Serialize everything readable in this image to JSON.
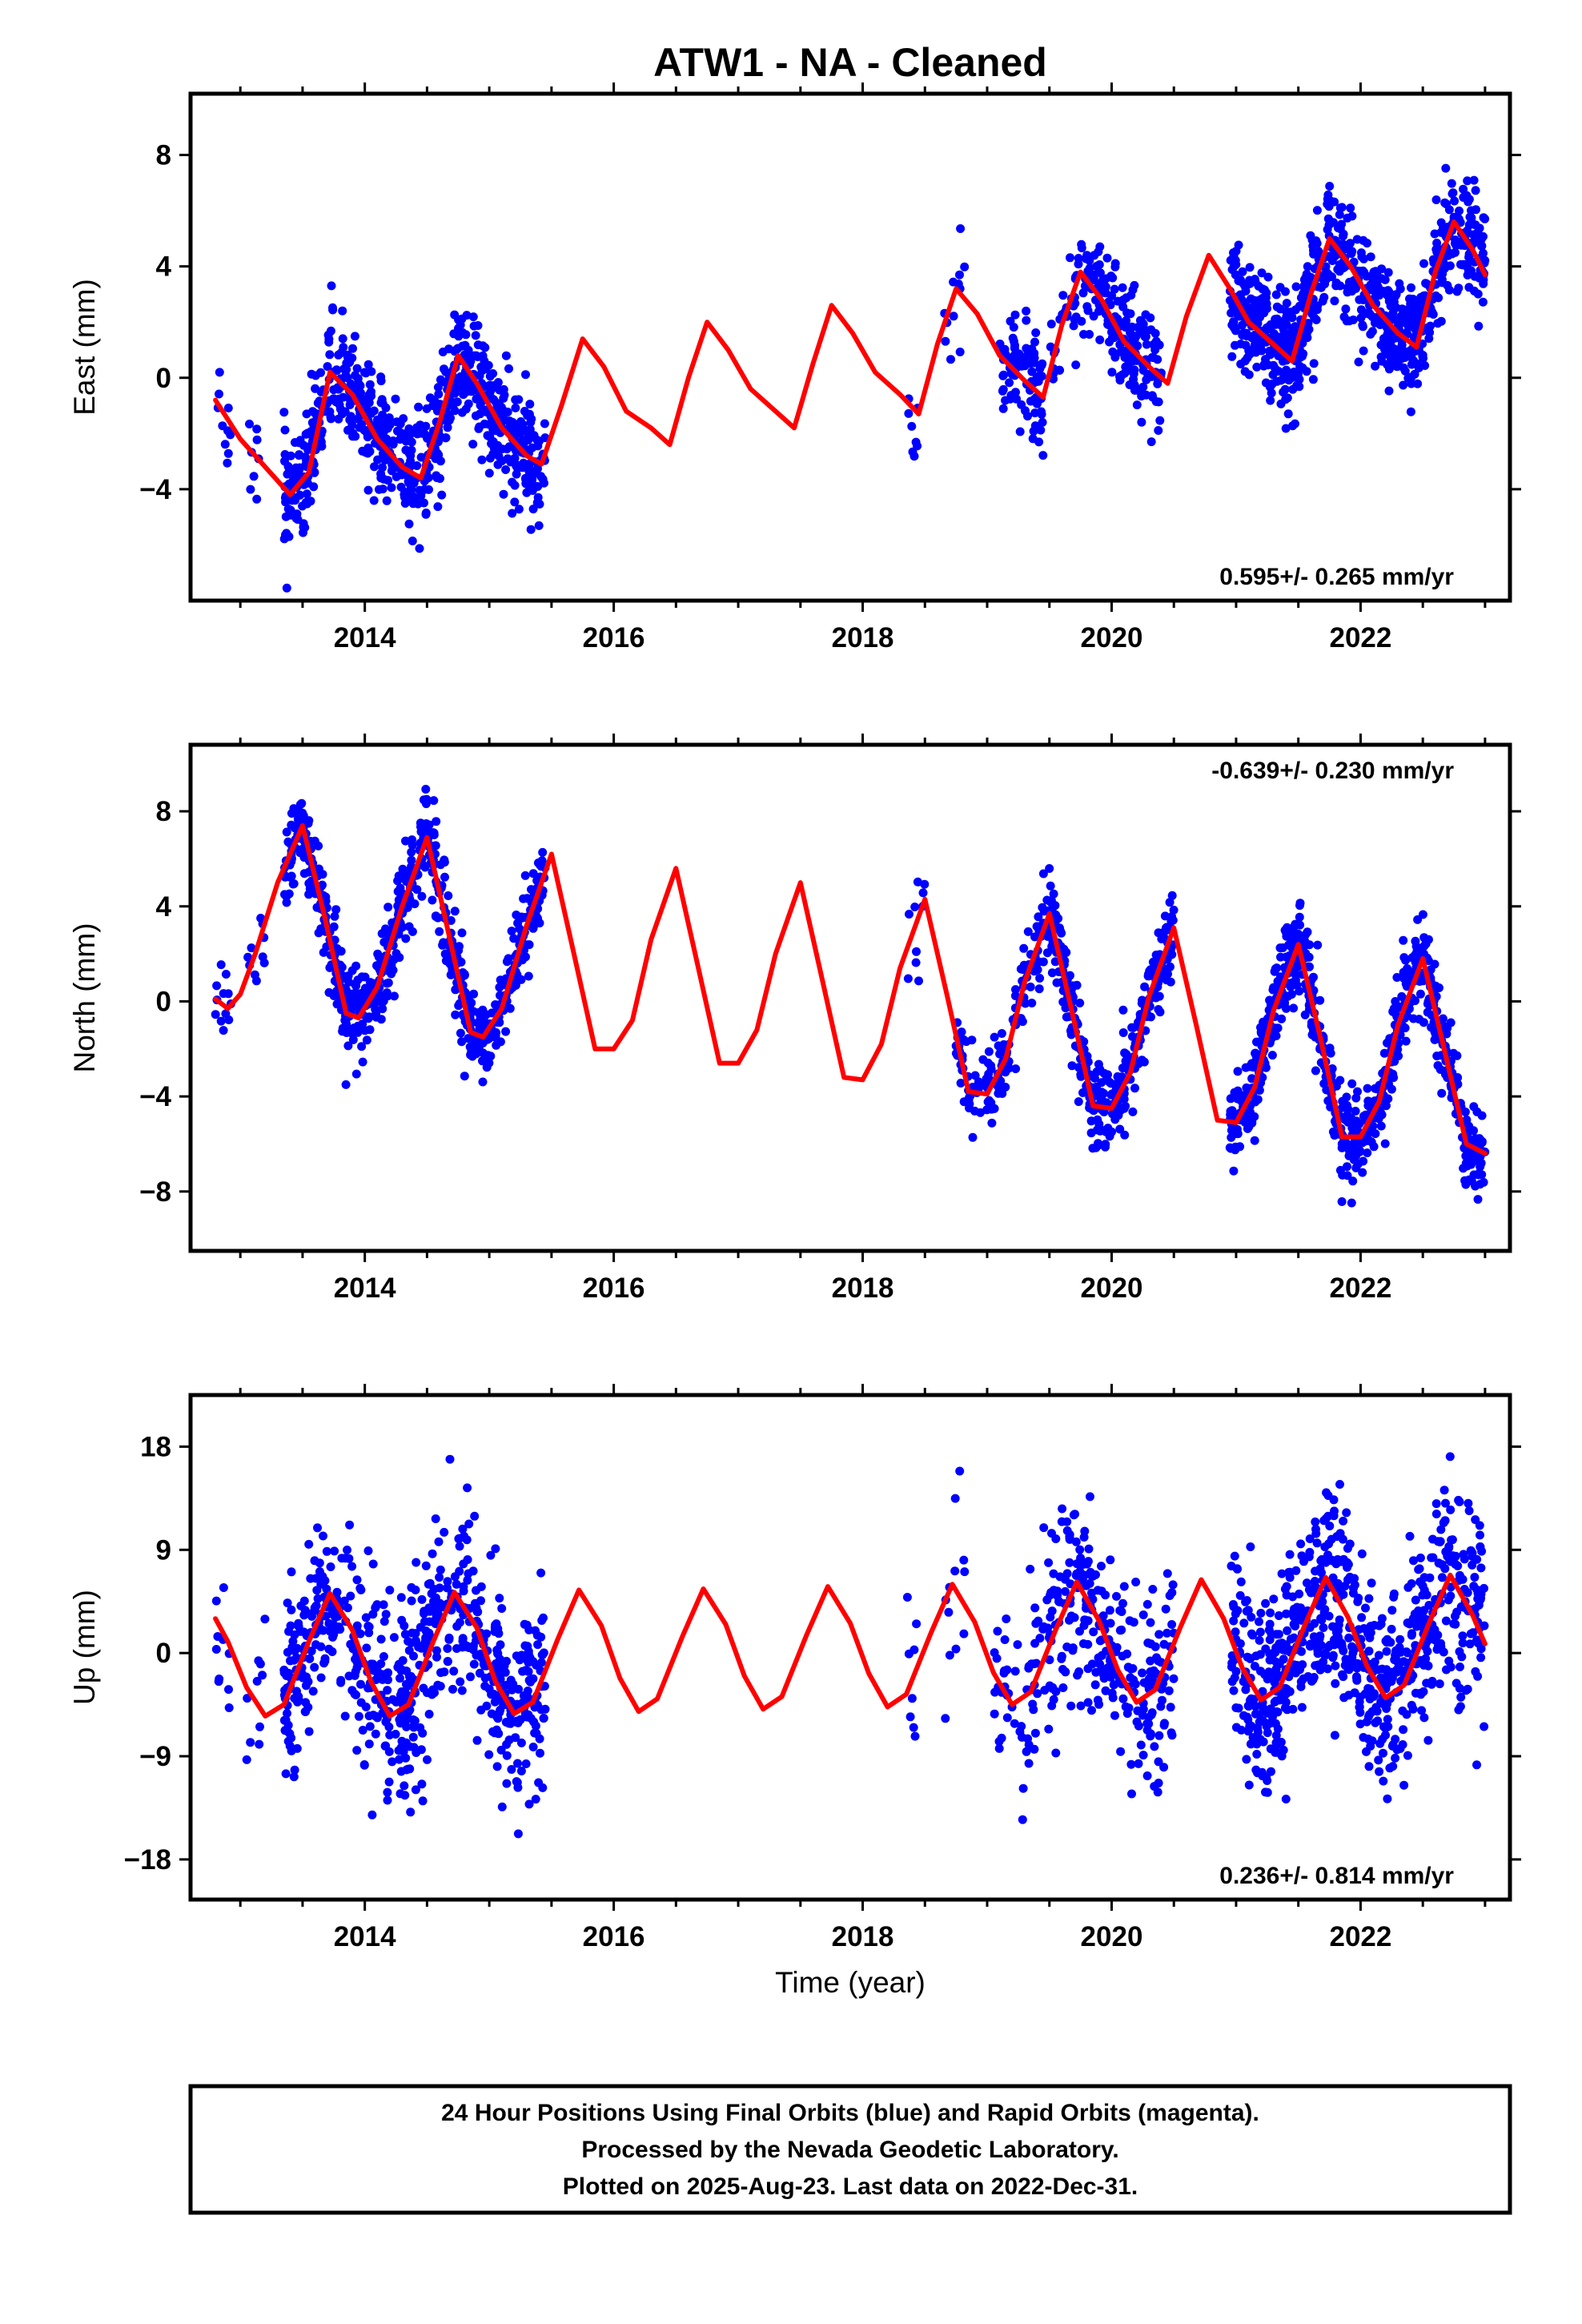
{
  "title": "ATW1  - NA - Cleaned",
  "colors": {
    "data": "#0000ff",
    "model": "#ff0000",
    "axis": "#000000"
  },
  "xlabel": "Time (year)",
  "caption": [
    "24 Hour Positions Using Final Orbits (blue) and Rapid Orbits (magenta).",
    "Processed by the Nevada Geodetic Laboratory.",
    "Plotted on 2025-Aug-23. Last data on 2022-Dec-31."
  ],
  "chart_data": [
    {
      "type": "scatter",
      "id": "east",
      "ylabel": "East (mm)",
      "rate_text": "0.595+/- 0.265 mm/yr",
      "rate_position": "bottom-right",
      "xlim": [
        2012.6,
        2023.2
      ],
      "ylim": [
        -8,
        10.2
      ],
      "xticks": [
        2014,
        2016,
        2018,
        2020,
        2022
      ],
      "yticks": [
        -4,
        0,
        4,
        8
      ],
      "data_segments": [
        {
          "start": 2012.8,
          "end": 2012.92,
          "n": 10
        },
        {
          "start": 2013.05,
          "end": 2013.15,
          "n": 8
        },
        {
          "start": 2013.35,
          "end": 2015.45,
          "n": 720
        },
        {
          "start": 2018.35,
          "end": 2018.45,
          "n": 8
        },
        {
          "start": 2018.65,
          "end": 2018.82,
          "n": 12
        },
        {
          "start": 2019.1,
          "end": 2019.45,
          "n": 90
        },
        {
          "start": 2019.5,
          "end": 2019.8,
          "n": 40
        },
        {
          "start": 2019.8,
          "end": 2020.4,
          "n": 180
        },
        {
          "start": 2020.95,
          "end": 2021.6,
          "n": 300
        },
        {
          "start": 2021.6,
          "end": 2022.2,
          "n": 200
        },
        {
          "start": 2022.2,
          "end": 2023.0,
          "n": 320
        }
      ],
      "annual_amplitude": 2.6,
      "annual_phase": 0.25,
      "scatter_sd": 1.0,
      "model_points": [
        [
          2012.8,
          -0.8
        ],
        [
          2013.0,
          -2.2
        ],
        [
          2013.2,
          -3.2
        ],
        [
          2013.4,
          -4.2
        ],
        [
          2013.55,
          -3.4
        ],
        [
          2013.72,
          0.2
        ],
        [
          2013.9,
          -0.6
        ],
        [
          2014.1,
          -2.2
        ],
        [
          2014.3,
          -3.2
        ],
        [
          2014.45,
          -3.6
        ],
        [
          2014.6,
          -1.6
        ],
        [
          2014.75,
          0.8
        ],
        [
          2014.9,
          -0.2
        ],
        [
          2015.1,
          -1.8
        ],
        [
          2015.3,
          -2.8
        ],
        [
          2015.42,
          -3.1
        ],
        [
          2015.58,
          -1.0
        ],
        [
          2015.75,
          1.4
        ],
        [
          2015.92,
          0.4
        ],
        [
          2016.1,
          -1.2
        ],
        [
          2016.3,
          -1.8
        ],
        [
          2016.45,
          -2.4
        ],
        [
          2016.6,
          0.0
        ],
        [
          2016.75,
          2.0
        ],
        [
          2016.92,
          1.0
        ],
        [
          2017.1,
          -0.4
        ],
        [
          2017.3,
          -1.2
        ],
        [
          2017.45,
          -1.8
        ],
        [
          2017.6,
          0.5
        ],
        [
          2017.75,
          2.6
        ],
        [
          2017.92,
          1.6
        ],
        [
          2018.1,
          0.2
        ],
        [
          2018.3,
          -0.6
        ],
        [
          2018.45,
          -1.3
        ],
        [
          2018.6,
          1.2
        ],
        [
          2018.75,
          3.2
        ],
        [
          2018.92,
          2.3
        ],
        [
          2019.1,
          0.8
        ],
        [
          2019.3,
          -0.1
        ],
        [
          2019.45,
          -0.7
        ],
        [
          2019.6,
          1.9
        ],
        [
          2019.75,
          3.8
        ],
        [
          2019.92,
          2.8
        ],
        [
          2020.1,
          1.3
        ],
        [
          2020.3,
          0.4
        ],
        [
          2020.45,
          -0.2
        ],
        [
          2020.6,
          2.2
        ],
        [
          2020.78,
          4.4
        ],
        [
          2020.95,
          3.2
        ],
        [
          2021.1,
          2.0
        ],
        [
          2021.3,
          1.2
        ],
        [
          2021.45,
          0.6
        ],
        [
          2021.6,
          3.0
        ],
        [
          2021.75,
          5.0
        ],
        [
          2021.92,
          4.0
        ],
        [
          2022.1,
          2.6
        ],
        [
          2022.3,
          1.6
        ],
        [
          2022.45,
          1.1
        ],
        [
          2022.6,
          3.8
        ],
        [
          2022.75,
          5.6
        ],
        [
          2022.9,
          4.6
        ],
        [
          2023.0,
          3.7
        ]
      ]
    },
    {
      "type": "scatter",
      "id": "north",
      "ylabel": "North (mm)",
      "rate_text": "-0.639+/- 0.230 mm/yr",
      "rate_position": "top-right",
      "xlim": [
        2012.6,
        2023.2
      ],
      "ylim": [
        -10.5,
        10.8
      ],
      "xticks": [
        2014,
        2016,
        2018,
        2020,
        2022
      ],
      "yticks": [
        -8,
        -4,
        0,
        4,
        8
      ],
      "data_segments": [
        {
          "start": 2012.8,
          "end": 2012.95,
          "n": 12
        },
        {
          "start": 2013.05,
          "end": 2013.2,
          "n": 10
        },
        {
          "start": 2013.35,
          "end": 2015.45,
          "n": 720
        },
        {
          "start": 2018.35,
          "end": 2018.5,
          "n": 10
        },
        {
          "start": 2018.75,
          "end": 2019.5,
          "n": 140
        },
        {
          "start": 2019.5,
          "end": 2020.5,
          "n": 300
        },
        {
          "start": 2020.95,
          "end": 2022.05,
          "n": 420
        },
        {
          "start": 2022.05,
          "end": 2023.0,
          "n": 330
        }
      ],
      "annual_amplitude": 4.2,
      "annual_phase": 0.5,
      "scatter_sd": 0.9,
      "model_points": [
        [
          2012.8,
          0.1
        ],
        [
          2012.9,
          -0.3
        ],
        [
          2013.0,
          0.3
        ],
        [
          2013.12,
          2.0
        ],
        [
          2013.3,
          5.0
        ],
        [
          2013.5,
          7.4
        ],
        [
          2013.68,
          3.5
        ],
        [
          2013.85,
          -0.5
        ],
        [
          2013.95,
          -0.7
        ],
        [
          2014.1,
          0.6
        ],
        [
          2014.3,
          4.0
        ],
        [
          2014.5,
          6.9
        ],
        [
          2014.68,
          2.7
        ],
        [
          2014.85,
          -1.3
        ],
        [
          2014.95,
          -1.5
        ],
        [
          2015.1,
          -0.3
        ],
        [
          2015.3,
          3.2
        ],
        [
          2015.5,
          6.2
        ],
        [
          2015.68,
          2.0
        ],
        [
          2015.85,
          -2.0
        ],
        [
          2016.0,
          -2.0
        ],
        [
          2016.15,
          -0.8
        ],
        [
          2016.3,
          2.6
        ],
        [
          2016.5,
          5.6
        ],
        [
          2016.68,
          1.4
        ],
        [
          2016.85,
          -2.6
        ],
        [
          2017.0,
          -2.6
        ],
        [
          2017.15,
          -1.2
        ],
        [
          2017.3,
          2.0
        ],
        [
          2017.5,
          5.0
        ],
        [
          2017.68,
          0.8
        ],
        [
          2017.85,
          -3.2
        ],
        [
          2018.0,
          -3.3
        ],
        [
          2018.15,
          -1.8
        ],
        [
          2018.3,
          1.4
        ],
        [
          2018.5,
          4.3
        ],
        [
          2018.68,
          0.2
        ],
        [
          2018.85,
          -3.8
        ],
        [
          2019.0,
          -3.9
        ],
        [
          2019.15,
          -2.4
        ],
        [
          2019.3,
          0.8
        ],
        [
          2019.5,
          3.7
        ],
        [
          2019.68,
          -0.4
        ],
        [
          2019.85,
          -4.4
        ],
        [
          2020.0,
          -4.5
        ],
        [
          2020.15,
          -3.0
        ],
        [
          2020.3,
          0.2
        ],
        [
          2020.5,
          3.1
        ],
        [
          2020.68,
          -1.0
        ],
        [
          2020.85,
          -5.0
        ],
        [
          2021.0,
          -5.1
        ],
        [
          2021.15,
          -3.6
        ],
        [
          2021.3,
          -0.4
        ],
        [
          2021.5,
          2.4
        ],
        [
          2021.68,
          -1.6
        ],
        [
          2021.85,
          -5.7
        ],
        [
          2022.0,
          -5.7
        ],
        [
          2022.15,
          -4.2
        ],
        [
          2022.3,
          -1.0
        ],
        [
          2022.5,
          1.8
        ],
        [
          2022.68,
          -2.2
        ],
        [
          2022.85,
          -6.0
        ],
        [
          2023.0,
          -6.4
        ]
      ]
    },
    {
      "type": "scatter",
      "id": "up",
      "ylabel": "Up (mm)",
      "rate_text": "0.236+/- 0.814 mm/yr",
      "rate_position": "bottom-right",
      "xlim": [
        2012.6,
        2023.2
      ],
      "ylim": [
        -21.5,
        22.5
      ],
      "xticks": [
        2014,
        2016,
        2018,
        2020,
        2022
      ],
      "yticks": [
        -18,
        -9,
        0,
        9,
        18
      ],
      "data_segments": [
        {
          "start": 2012.8,
          "end": 2012.95,
          "n": 10
        },
        {
          "start": 2013.05,
          "end": 2013.2,
          "n": 10
        },
        {
          "start": 2013.35,
          "end": 2015.45,
          "n": 650
        },
        {
          "start": 2018.35,
          "end": 2018.45,
          "n": 8
        },
        {
          "start": 2018.65,
          "end": 2018.82,
          "n": 12
        },
        {
          "start": 2019.05,
          "end": 2019.5,
          "n": 60
        },
        {
          "start": 2019.5,
          "end": 2020.5,
          "n": 260
        },
        {
          "start": 2020.95,
          "end": 2022.05,
          "n": 420
        },
        {
          "start": 2022.05,
          "end": 2023.0,
          "n": 320
        }
      ],
      "annual_amplitude": 5.2,
      "annual_phase": 0.5,
      "scatter_sd": 4.2,
      "model_points": [
        [
          2012.8,
          3.0
        ],
        [
          2012.9,
          1.0
        ],
        [
          2013.05,
          -3.0
        ],
        [
          2013.2,
          -5.5
        ],
        [
          2013.35,
          -4.5
        ],
        [
          2013.55,
          1.0
        ],
        [
          2013.72,
          5.2
        ],
        [
          2013.9,
          2.0
        ],
        [
          2014.05,
          -2.5
        ],
        [
          2014.2,
          -5.5
        ],
        [
          2014.35,
          -4.5
        ],
        [
          2014.55,
          1.0
        ],
        [
          2014.72,
          5.3
        ],
        [
          2014.9,
          2.2
        ],
        [
          2015.05,
          -2.5
        ],
        [
          2015.2,
          -5.3
        ],
        [
          2015.35,
          -4.3
        ],
        [
          2015.55,
          1.2
        ],
        [
          2015.72,
          5.5
        ],
        [
          2015.9,
          2.4
        ],
        [
          2016.05,
          -2.2
        ],
        [
          2016.2,
          -5.1
        ],
        [
          2016.35,
          -4.0
        ],
        [
          2016.55,
          1.4
        ],
        [
          2016.72,
          5.6
        ],
        [
          2016.9,
          2.5
        ],
        [
          2017.05,
          -2.0
        ],
        [
          2017.2,
          -4.9
        ],
        [
          2017.35,
          -3.8
        ],
        [
          2017.55,
          1.6
        ],
        [
          2017.72,
          5.8
        ],
        [
          2017.9,
          2.6
        ],
        [
          2018.05,
          -1.8
        ],
        [
          2018.2,
          -4.7
        ],
        [
          2018.35,
          -3.6
        ],
        [
          2018.55,
          1.8
        ],
        [
          2018.72,
          6.0
        ],
        [
          2018.9,
          2.7
        ],
        [
          2019.05,
          -1.7
        ],
        [
          2019.2,
          -4.5
        ],
        [
          2019.35,
          -3.4
        ],
        [
          2019.55,
          2.0
        ],
        [
          2019.72,
          6.2
        ],
        [
          2019.9,
          2.8
        ],
        [
          2020.05,
          -1.5
        ],
        [
          2020.2,
          -4.3
        ],
        [
          2020.35,
          -3.2
        ],
        [
          2020.55,
          2.2
        ],
        [
          2020.72,
          6.4
        ],
        [
          2020.9,
          3.0
        ],
        [
          2021.05,
          -1.3
        ],
        [
          2021.2,
          -4.1
        ],
        [
          2021.35,
          -3.0
        ],
        [
          2021.55,
          2.4
        ],
        [
          2021.72,
          6.6
        ],
        [
          2021.9,
          3.1
        ],
        [
          2022.05,
          -1.1
        ],
        [
          2022.2,
          -3.9
        ],
        [
          2022.35,
          -2.8
        ],
        [
          2022.55,
          2.6
        ],
        [
          2022.72,
          6.8
        ],
        [
          2022.9,
          3.3
        ],
        [
          2023.0,
          0.8
        ]
      ]
    }
  ]
}
